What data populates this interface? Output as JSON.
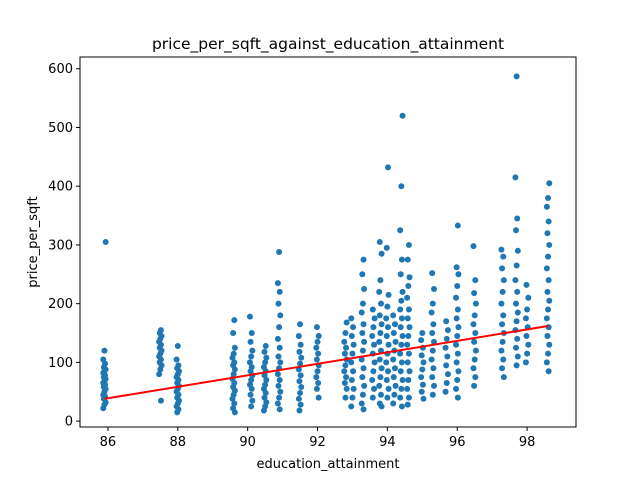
{
  "chart_data": {
    "type": "scatter",
    "title": "price_per_sqft_against_education_attainment",
    "xlabel": "education_attainment",
    "ylabel": "price_per_sqft",
    "xlim": [
      85.2,
      99.4
    ],
    "ylim": [
      -10,
      620
    ],
    "xticks": [
      86,
      88,
      90,
      92,
      94,
      96,
      98
    ],
    "yticks": [
      0,
      100,
      200,
      300,
      400,
      500,
      600
    ],
    "grid": false,
    "colors": {
      "points": "#1f77b4",
      "trend": "#ff0000"
    },
    "clusters": [
      {
        "x": 85.9,
        "values": [
          22,
          28,
          32,
          38,
          42,
          45,
          50,
          55,
          58,
          62,
          65,
          68,
          72,
          75,
          78,
          82,
          85,
          88,
          92,
          98,
          105,
          120,
          305
        ]
      },
      {
        "x": 87.5,
        "values": [
          35,
          80,
          88,
          95,
          100,
          105,
          110,
          115,
          120,
          125,
          130,
          135,
          140,
          145,
          150,
          155
        ]
      },
      {
        "x": 88.0,
        "values": [
          15,
          20,
          25,
          30,
          35,
          40,
          45,
          50,
          55,
          60,
          65,
          70,
          75,
          80,
          85,
          90,
          95,
          105,
          128
        ]
      },
      {
        "x": 89.6,
        "values": [
          15,
          22,
          30,
          38,
          45,
          52,
          58,
          65,
          72,
          80,
          88,
          95,
          100,
          108,
          115,
          125,
          150,
          172
        ]
      },
      {
        "x": 90.1,
        "values": [
          25,
          35,
          45,
          55,
          62,
          70,
          78,
          85,
          92,
          100,
          110,
          120,
          135,
          150,
          178
        ]
      },
      {
        "x": 90.5,
        "values": [
          18,
          25,
          32,
          40,
          48,
          55,
          62,
          70,
          78,
          85,
          92,
          100,
          108,
          118,
          128
        ]
      },
      {
        "x": 90.9,
        "values": [
          20,
          30,
          40,
          50,
          60,
          70,
          80,
          90,
          100,
          110,
          125,
          140,
          160,
          180,
          200,
          220,
          235,
          288
        ]
      },
      {
        "x": 91.5,
        "values": [
          18,
          28,
          38,
          48,
          58,
          68,
          78,
          88,
          98,
          108,
          118,
          130,
          145,
          165
        ]
      },
      {
        "x": 92.0,
        "values": [
          40,
          55,
          65,
          75,
          85,
          95,
          105,
          115,
          125,
          135,
          145,
          160
        ]
      },
      {
        "x": 92.8,
        "values": [
          40,
          55,
          65,
          75,
          85,
          95,
          105,
          115,
          125,
          135,
          150,
          168
        ]
      },
      {
        "x": 93.0,
        "values": [
          25,
          40,
          55,
          70,
          85,
          100,
          115,
          130,
          145,
          160,
          175
        ]
      },
      {
        "x": 93.3,
        "values": [
          20,
          30,
          45,
          60,
          75,
          90,
          105,
          120,
          135,
          150,
          165,
          185,
          200,
          225,
          250,
          275
        ]
      },
      {
        "x": 93.6,
        "values": [
          40,
          55,
          70,
          85,
          100,
          115,
          130,
          145,
          160,
          175,
          190
        ]
      },
      {
        "x": 93.8,
        "values": [
          25,
          30,
          45,
          60,
          75,
          90,
          105,
          120,
          135,
          150,
          165,
          180,
          200,
          220,
          240,
          285,
          305
        ]
      },
      {
        "x": 94.0,
        "values": [
          40,
          55,
          70,
          85,
          100,
          115,
          130,
          145,
          160,
          175,
          195,
          215,
          295,
          432
        ]
      },
      {
        "x": 94.2,
        "values": [
          30,
          45,
          60,
          75,
          90,
          105,
          120,
          135,
          150,
          165,
          180
        ]
      },
      {
        "x": 94.4,
        "values": [
          25,
          40,
          55,
          70,
          85,
          100,
          115,
          130,
          145,
          160,
          175,
          190,
          205,
          220,
          250,
          275,
          325,
          400,
          520
        ]
      },
      {
        "x": 94.6,
        "values": [
          28,
          40,
          55,
          70,
          85,
          100,
          115,
          130,
          145,
          160,
          175,
          190,
          210,
          230,
          245,
          275,
          300
        ]
      },
      {
        "x": 95.0,
        "values": [
          38,
          50,
          62,
          75,
          88,
          100,
          112,
          125,
          138,
          150
        ]
      },
      {
        "x": 95.3,
        "values": [
          45,
          60,
          75,
          90,
          105,
          120,
          135,
          150,
          165,
          185,
          200,
          225,
          252
        ]
      },
      {
        "x": 95.7,
        "values": [
          50,
          65,
          80,
          95,
          110,
          125,
          140,
          155,
          170
        ]
      },
      {
        "x": 96.0,
        "values": [
          40,
          55,
          70,
          85,
          100,
          115,
          130,
          145,
          160,
          175,
          190,
          210,
          230,
          250,
          262,
          333
        ]
      },
      {
        "x": 96.5,
        "values": [
          60,
          75,
          90,
          105,
          120,
          135,
          150,
          165,
          180,
          200,
          218,
          240,
          298
        ]
      },
      {
        "x": 97.3,
        "values": [
          75,
          90,
          105,
          120,
          135,
          150,
          165,
          180,
          200,
          220,
          240,
          260,
          280,
          292
        ]
      },
      {
        "x": 97.7,
        "values": [
          95,
          110,
          125,
          140,
          155,
          170,
          185,
          200,
          220,
          240,
          265,
          290,
          325,
          345,
          415,
          587
        ]
      },
      {
        "x": 98.0,
        "values": [
          100,
          115,
          130,
          145,
          160,
          175,
          190,
          210,
          232
        ]
      },
      {
        "x": 98.6,
        "values": [
          85,
          100,
          115,
          130,
          145,
          160,
          175,
          190,
          205,
          220,
          240,
          260,
          280,
          300,
          320,
          340,
          365,
          380,
          405
        ]
      }
    ],
    "trend_line": {
      "x": [
        85.9,
        98.6
      ],
      "y": [
        38,
        162
      ]
    }
  }
}
